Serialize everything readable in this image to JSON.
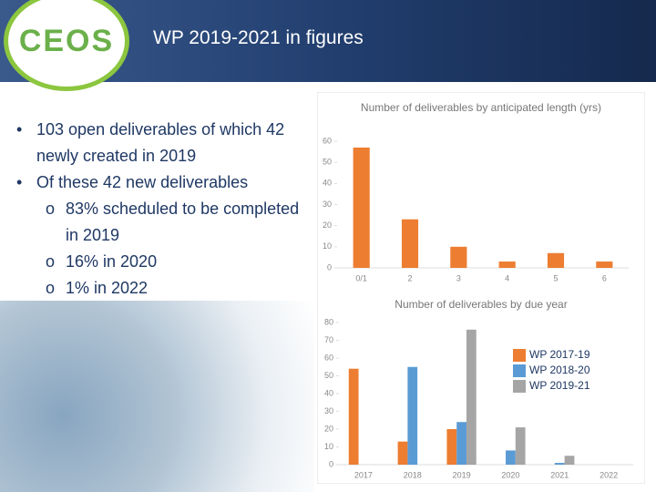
{
  "header": {
    "logo": "CEOS",
    "title": "WP 2019-2021 in figures"
  },
  "bullets": [
    {
      "text": "103 open deliverables of which 42 newly created in 2019"
    },
    {
      "text": "Of these 42 new deliverables",
      "items": [
        "83% scheduled to be completed in 2019",
        "16% in 2020",
        "1% in 2022"
      ]
    }
  ],
  "chart_data": [
    {
      "type": "bar",
      "title": "Number of deliverables by anticipated length (yrs)",
      "categories": [
        "0/1",
        "2",
        "3",
        "4",
        "5",
        "6"
      ],
      "values": [
        57,
        23,
        10,
        3,
        7,
        3
      ],
      "color": "#ed7d31",
      "ylim": [
        0,
        60
      ],
      "yticks": [
        0,
        10,
        20,
        30,
        40,
        50,
        60
      ]
    },
    {
      "type": "grouped-bar",
      "title": "Number of deliverables by due year",
      "categories": [
        "2017",
        "2018",
        "2019",
        "2020",
        "2021",
        "2022"
      ],
      "series": [
        {
          "name": "WP 2017-19",
          "color": "#ed7d31",
          "values": [
            54,
            13,
            20,
            null,
            null,
            null
          ]
        },
        {
          "name": "WP 2018-20",
          "color": "#5b9bd5",
          "values": [
            null,
            55,
            24,
            8,
            1,
            null
          ]
        },
        {
          "name": "WP 2019-21",
          "color": "#a5a5a5",
          "values": [
            null,
            null,
            76,
            21,
            5,
            null
          ]
        }
      ],
      "ylim": [
        0,
        80
      ],
      "yticks": [
        0,
        10,
        20,
        30,
        40,
        50,
        60,
        70,
        80
      ]
    }
  ]
}
